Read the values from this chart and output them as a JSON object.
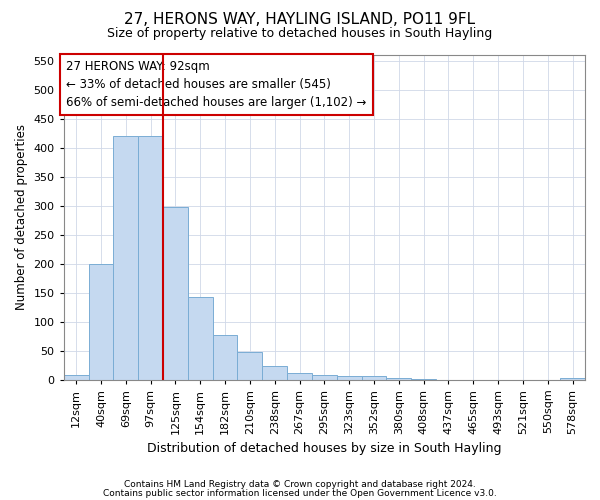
{
  "title": "27, HERONS WAY, HAYLING ISLAND, PO11 9FL",
  "subtitle": "Size of property relative to detached houses in South Hayling",
  "xlabel": "Distribution of detached houses by size in South Hayling",
  "ylabel": "Number of detached properties",
  "categories": [
    "12sqm",
    "40sqm",
    "69sqm",
    "97sqm",
    "125sqm",
    "154sqm",
    "182sqm",
    "210sqm",
    "238sqm",
    "267sqm",
    "295sqm",
    "323sqm",
    "352sqm",
    "380sqm",
    "408sqm",
    "437sqm",
    "465sqm",
    "493sqm",
    "521sqm",
    "550sqm",
    "578sqm"
  ],
  "values": [
    8,
    200,
    420,
    420,
    298,
    142,
    77,
    48,
    23,
    12,
    8,
    6,
    7,
    3,
    1,
    0,
    0,
    0,
    0,
    0,
    3
  ],
  "bar_color": "#c5d9f0",
  "bar_edge_color": "#7aadd4",
  "vline_x": 3.5,
  "vline_color": "#cc0000",
  "annotation_text": "27 HERONS WAY: 92sqm\n← 33% of detached houses are smaller (545)\n66% of semi-detached houses are larger (1,102) →",
  "annotation_box_color": "#ffffff",
  "annotation_box_edge_color": "#cc0000",
  "ylim": [
    0,
    560
  ],
  "yticks": [
    0,
    50,
    100,
    150,
    200,
    250,
    300,
    350,
    400,
    450,
    500,
    550
  ],
  "footer1": "Contains HM Land Registry data © Crown copyright and database right 2024.",
  "footer2": "Contains public sector information licensed under the Open Government Licence v3.0.",
  "background_color": "#ffffff",
  "grid_color": "#d0d8e8",
  "title_fontsize": 11,
  "subtitle_fontsize": 9,
  "ylabel_fontsize": 8.5,
  "xlabel_fontsize": 9,
  "tick_fontsize": 8,
  "annotation_fontsize": 8.5,
  "figsize": [
    6.0,
    5.0
  ],
  "dpi": 100
}
